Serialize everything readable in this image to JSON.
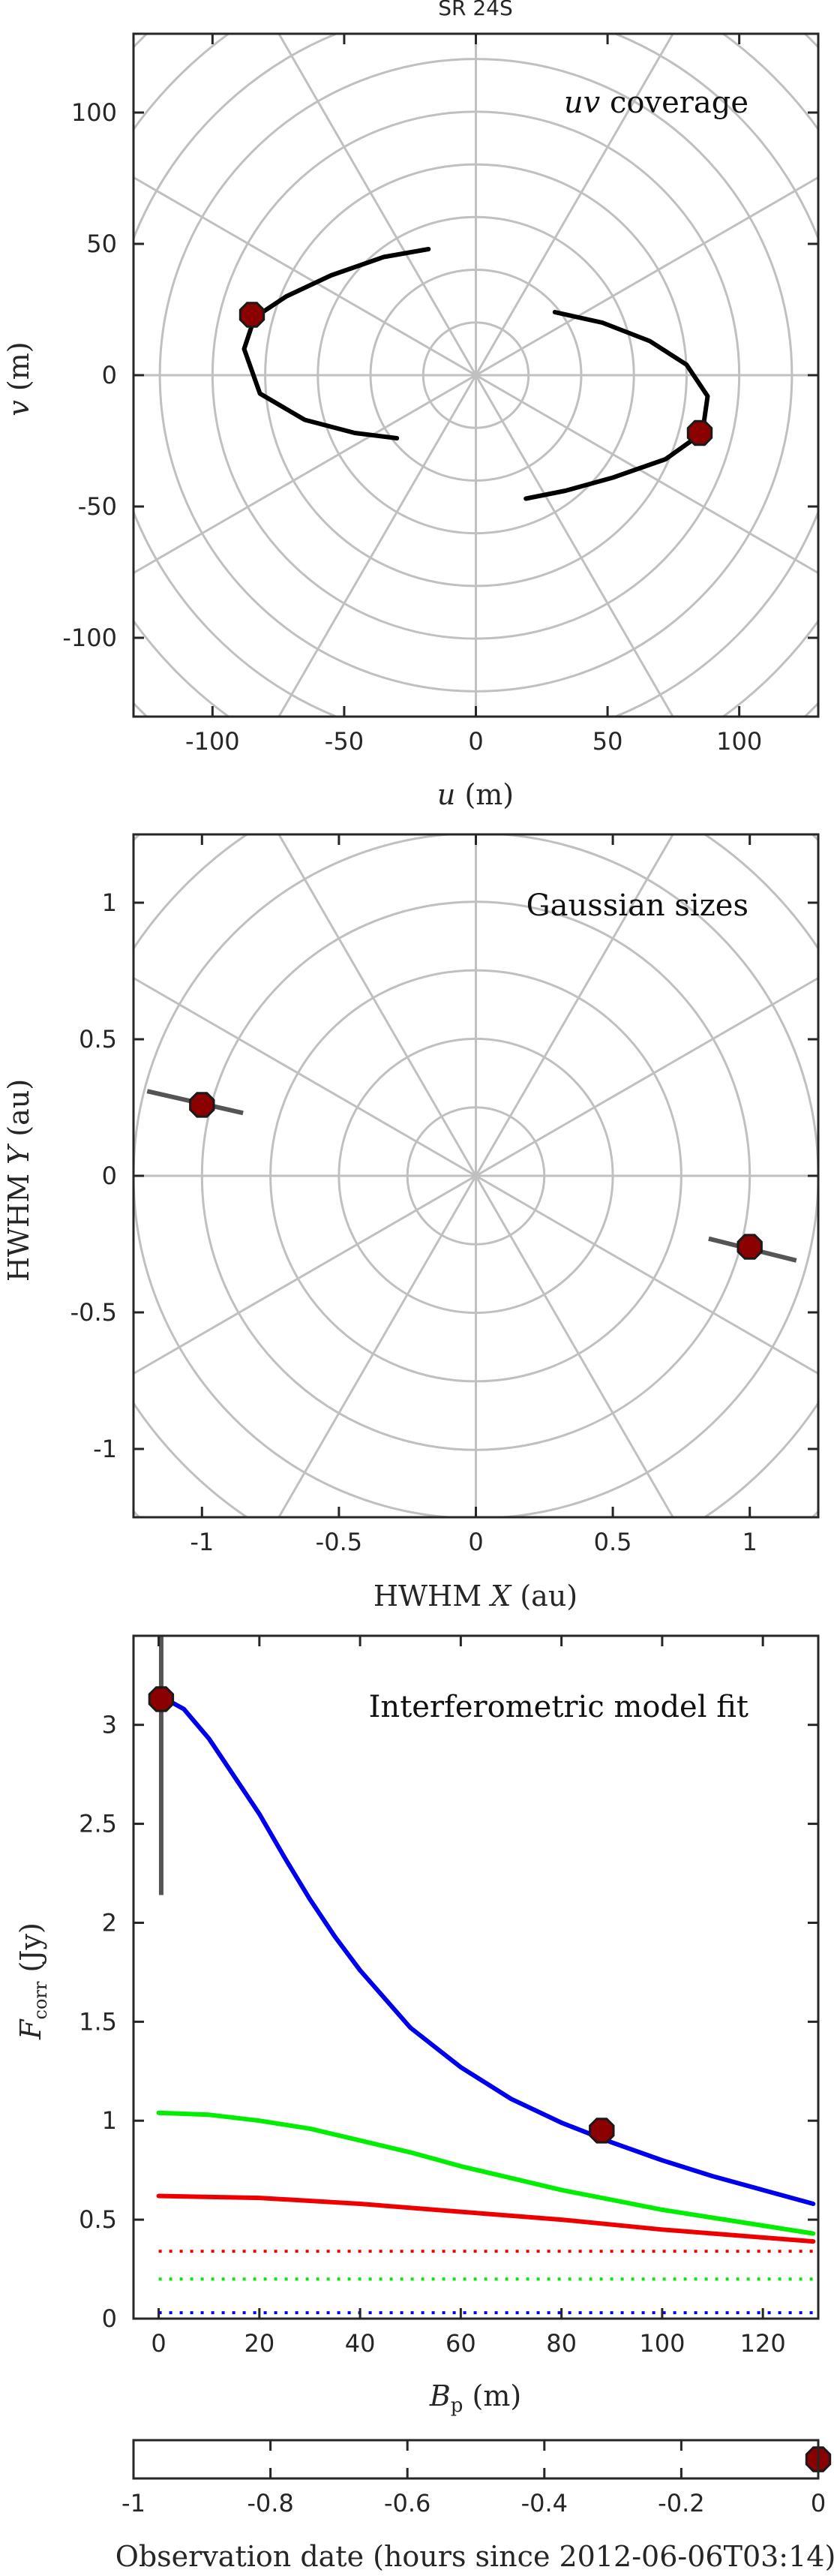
{
  "title": "SR 24S",
  "colors": {
    "axis": "#262626",
    "polar_grid": "#c0c0c0",
    "track": "#000000",
    "marker_fill": "#8b0000",
    "marker_edge": "#1a1a1a",
    "errorbar": "#555555",
    "blue": "#0000ee",
    "green": "#00ee00",
    "red": "#ee0000"
  },
  "chart_data": [
    {
      "type": "line",
      "panel_label": "uv coverage",
      "xlabel_var": "u",
      "xlabel_unit": "(m)",
      "ylabel_var": "v",
      "ylabel_unit": "(m)",
      "xlim": [
        -130,
        130
      ],
      "ylim": [
        -130,
        130
      ],
      "xticks": [
        -100,
        -50,
        0,
        50,
        100
      ],
      "yticks": [
        -100,
        -50,
        0,
        50,
        100
      ],
      "polar_grid": {
        "radii": [
          20,
          40,
          60,
          80,
          100,
          120,
          140,
          160,
          180
        ],
        "spokes_deg": [
          0,
          30,
          60,
          90,
          120,
          150
        ]
      },
      "series": [
        {
          "x": [
            -18,
            -35,
            -55,
            -72,
            -84,
            -88,
            -82,
            -65,
            -46,
            -30
          ],
          "y": [
            48,
            45,
            38,
            30,
            22,
            10,
            -7,
            -17,
            -22,
            -24
          ]
        },
        {
          "x": [
            30,
            48,
            66,
            80,
            88,
            86,
            72,
            52,
            34,
            19
          ],
          "y": [
            24,
            20,
            13,
            4,
            -8,
            -22,
            -32,
            -39,
            -44,
            -47
          ]
        }
      ],
      "markers": [
        {
          "x": -85,
          "y": 23
        },
        {
          "x": 85,
          "y": -22
        }
      ]
    },
    {
      "type": "scatter",
      "panel_label": "Gaussian sizes",
      "xlabel_pre": "HWHM ",
      "xlabel_var": "X",
      "xlabel_unit": "(au)",
      "ylabel_pre": "HWHM ",
      "ylabel_var": "Y",
      "ylabel_unit": "(au)",
      "xlim": [
        -1.25,
        1.25
      ],
      "ylim": [
        -1.25,
        1.25
      ],
      "xticks": [
        -1,
        -0.5,
        0,
        0.5,
        1
      ],
      "yticks": [
        -1,
        -0.5,
        0,
        0.5,
        1
      ],
      "polar_grid": {
        "radii": [
          0.25,
          0.5,
          0.75,
          1.0,
          1.25,
          1.5,
          1.75
        ],
        "spokes_deg": [
          0,
          30,
          60,
          90,
          120,
          150
        ]
      },
      "points": [
        {
          "x": -1.0,
          "y": 0.26,
          "bar_x": [
            -1.2,
            -0.85
          ],
          "bar_y": [
            0.31,
            0.23
          ]
        },
        {
          "x": 1.0,
          "y": -0.26,
          "bar_x": [
            0.85,
            1.17
          ],
          "bar_y": [
            -0.23,
            -0.31
          ]
        }
      ]
    },
    {
      "type": "line",
      "panel_label": "Interferometric model fit",
      "ylabel_var": "F",
      "ylabel_sub": "corr",
      "ylabel_unit": "(Jy)",
      "xlabel_var": "B",
      "xlabel_sub": "p",
      "xlabel_unit": "(m)",
      "xlim": [
        -5,
        131
      ],
      "ylim": [
        0,
        3.45
      ],
      "xticks": [
        0,
        20,
        40,
        60,
        80,
        100,
        120
      ],
      "yticks": [
        0,
        0.5,
        1,
        1.5,
        2,
        2.5,
        3
      ],
      "series": [
        {
          "color": "blue",
          "style": "solid",
          "x": [
            0,
            5,
            10,
            15,
            20,
            25,
            30,
            35,
            40,
            50,
            60,
            70,
            80,
            90,
            100,
            110,
            120,
            130
          ],
          "y": [
            3.15,
            3.08,
            2.93,
            2.74,
            2.55,
            2.33,
            2.12,
            1.93,
            1.76,
            1.47,
            1.27,
            1.11,
            0.99,
            0.89,
            0.8,
            0.72,
            0.65,
            0.58
          ]
        },
        {
          "color": "green",
          "style": "solid",
          "x": [
            0,
            10,
            20,
            30,
            40,
            50,
            60,
            70,
            80,
            90,
            100,
            110,
            120,
            130
          ],
          "y": [
            1.04,
            1.03,
            1.0,
            0.96,
            0.9,
            0.84,
            0.77,
            0.71,
            0.65,
            0.6,
            0.55,
            0.51,
            0.47,
            0.43
          ]
        },
        {
          "color": "red",
          "style": "solid",
          "x": [
            0,
            20,
            40,
            60,
            80,
            100,
            120,
            130
          ],
          "y": [
            0.62,
            0.61,
            0.58,
            0.54,
            0.5,
            0.45,
            0.41,
            0.39
          ]
        },
        {
          "color": "red",
          "style": "dotted",
          "x": [
            0,
            130
          ],
          "y": [
            0.34,
            0.34
          ]
        },
        {
          "color": "green",
          "style": "dotted",
          "x": [
            0,
            130
          ],
          "y": [
            0.2,
            0.2
          ]
        },
        {
          "color": "blue",
          "style": "dotted",
          "x": [
            0,
            130
          ],
          "y": [
            0.03,
            0.03
          ]
        }
      ],
      "markers": [
        {
          "x": 0.5,
          "y": 3.13,
          "err_low": 2.14,
          "err_high": 3.45
        },
        {
          "x": 88,
          "y": 0.95
        }
      ]
    },
    {
      "type": "scatter",
      "xlabel": "Observation date (hours since 2012-06-06T03:14)",
      "xlim": [
        -1.0,
        0.0
      ],
      "xticks": [
        -1,
        -0.8,
        -0.6,
        -0.4,
        -0.2,
        0
      ],
      "points": [
        {
          "x": 0.0
        }
      ]
    }
  ]
}
